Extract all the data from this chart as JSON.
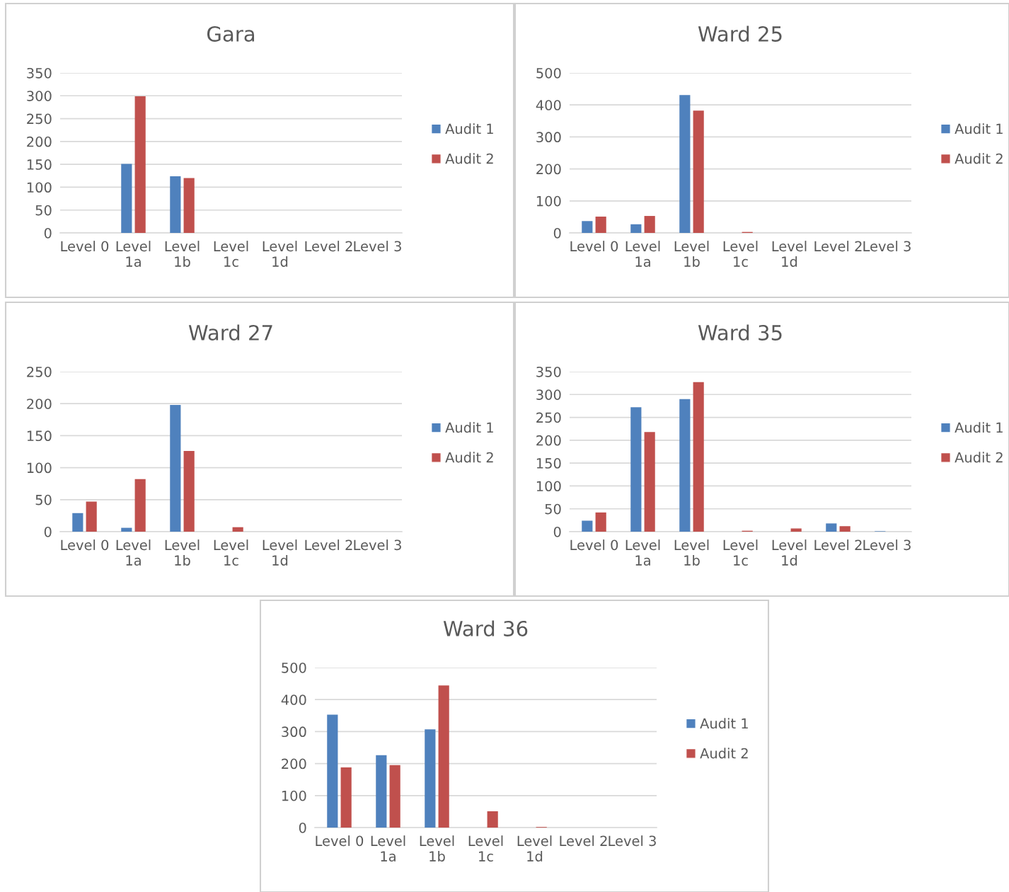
{
  "chart_data": [
    {
      "type": "bar",
      "title": "Gara",
      "categories": [
        "Level 0",
        "Level 1a",
        "Level 1b",
        "Level 1c",
        "Level 1d",
        "Level 2",
        "Level 3"
      ],
      "series": [
        {
          "name": "Audit 1",
          "color": "#4f81bd",
          "values": [
            null,
            151,
            124,
            null,
            null,
            null,
            null
          ]
        },
        {
          "name": "Audit 2",
          "color": "#c0504d",
          "values": [
            null,
            299,
            120,
            null,
            null,
            null,
            null
          ]
        }
      ],
      "ylim": [
        0,
        350
      ],
      "yticks": [
        0,
        50,
        100,
        150,
        200,
        250,
        300,
        350
      ],
      "grid": "y",
      "legend": "right"
    },
    {
      "type": "bar",
      "title": "Ward 25",
      "categories": [
        "Level 0",
        "Level 1a",
        "Level 1b",
        "Level 1c",
        "Level 1d",
        "Level 2",
        "Level 3"
      ],
      "series": [
        {
          "name": "Audit 1",
          "color": "#4f81bd",
          "values": [
            37,
            27,
            431,
            null,
            null,
            null,
            null
          ]
        },
        {
          "name": "Audit 2",
          "color": "#c0504d",
          "values": [
            51,
            53,
            382,
            3,
            null,
            null,
            null
          ]
        }
      ],
      "ylim": [
        0,
        500
      ],
      "yticks": [
        0,
        100,
        200,
        300,
        400,
        500
      ],
      "grid": "y",
      "legend": "right"
    },
    {
      "type": "bar",
      "title": "Ward 27",
      "categories": [
        "Level 0",
        "Level 1a",
        "Level 1b",
        "Level 1c",
        "Level 1d",
        "Level 2",
        "Level 3"
      ],
      "series": [
        {
          "name": "Audit 1",
          "color": "#4f81bd",
          "values": [
            29,
            6,
            198,
            null,
            null,
            null,
            null
          ]
        },
        {
          "name": "Audit 2",
          "color": "#c0504d",
          "values": [
            47,
            82,
            126,
            7,
            null,
            null,
            null
          ]
        }
      ],
      "ylim": [
        0,
        250
      ],
      "yticks": [
        0,
        50,
        100,
        150,
        200,
        250
      ],
      "grid": "y",
      "legend": "right"
    },
    {
      "type": "bar",
      "title": "Ward 35",
      "categories": [
        "Level 0",
        "Level 1a",
        "Level 1b",
        "Level 1c",
        "Level 1d",
        "Level 2",
        "Level 3"
      ],
      "series": [
        {
          "name": "Audit 1",
          "color": "#4f81bd",
          "values": [
            24,
            272,
            290,
            null,
            null,
            18,
            1
          ]
        },
        {
          "name": "Audit 2",
          "color": "#c0504d",
          "values": [
            42,
            218,
            327,
            2,
            7,
            12,
            null
          ]
        }
      ],
      "ylim": [
        0,
        350
      ],
      "yticks": [
        0,
        50,
        100,
        150,
        200,
        250,
        300,
        350
      ],
      "grid": "y",
      "legend": "right"
    },
    {
      "type": "bar",
      "title": "Ward 36",
      "categories": [
        "Level 0",
        "Level 1a",
        "Level 1b",
        "Level 1c",
        "Level 1d",
        "Level 2",
        "Level 3"
      ],
      "series": [
        {
          "name": "Audit 1",
          "color": "#4f81bd",
          "values": [
            353,
            226,
            307,
            null,
            null,
            null,
            null
          ]
        },
        {
          "name": "Audit 2",
          "color": "#c0504d",
          "values": [
            188,
            195,
            444,
            51,
            2,
            null,
            null
          ]
        }
      ],
      "ylim": [
        0,
        500
      ],
      "yticks": [
        0,
        100,
        200,
        300,
        400,
        500
      ],
      "grid": "y",
      "legend": "right"
    }
  ]
}
